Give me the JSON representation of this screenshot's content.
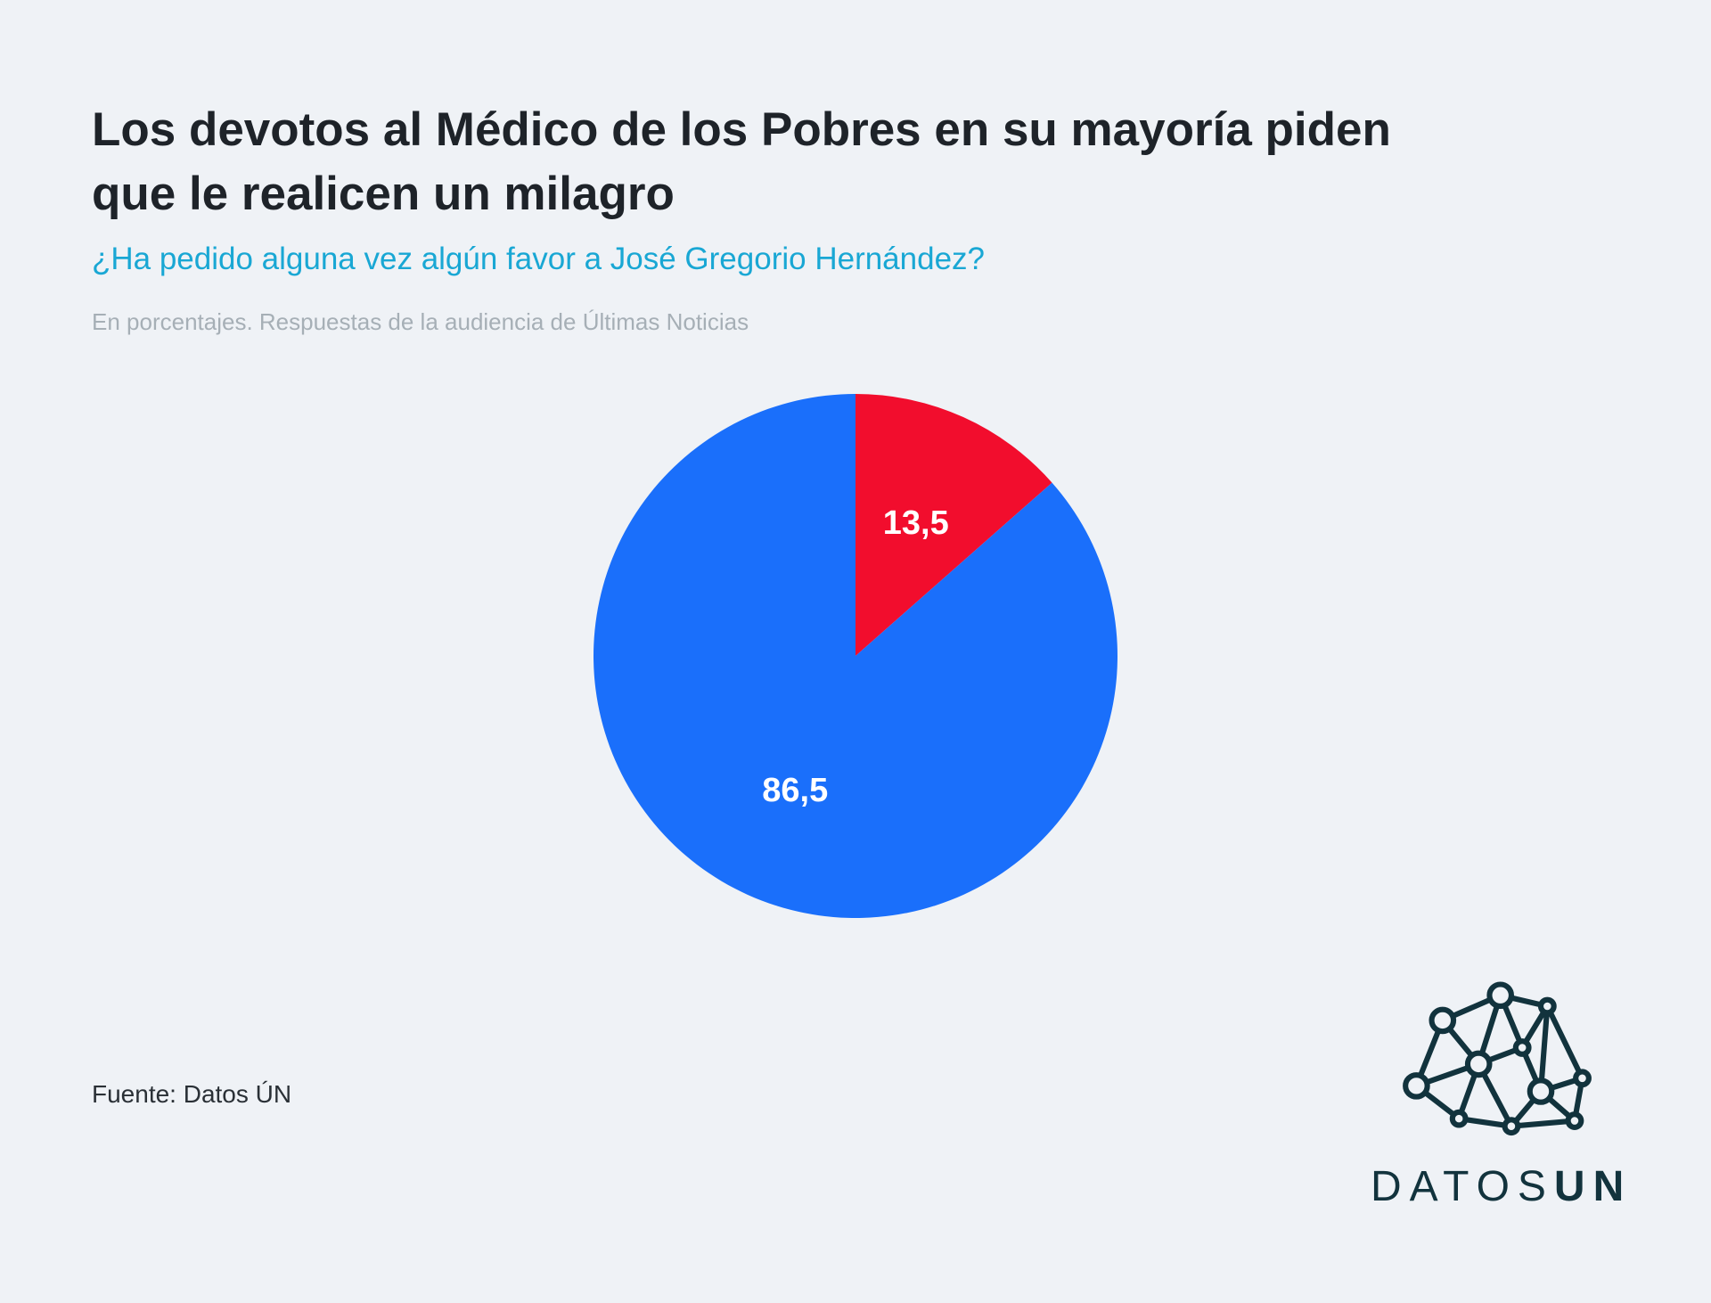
{
  "chart_data": {
    "type": "pie",
    "title": [
      "Los devotos al Médico de los Pobres en su mayoría piden",
      "que le realicen un milagro"
    ],
    "subtitle": "¿Ha pedido alguna vez algún favor a José Gregorio Hernández?",
    "note": "En porcentajes. Respuestas de la audiencia de Últimas Noticias",
    "source": "Fuente: Datos ÚN",
    "values": [
      13.5,
      86.5
    ],
    "value_labels": [
      "13,5",
      "86,5"
    ],
    "colors": [
      "#f20d2d",
      "#1a6ffb"
    ]
  },
  "logo": {
    "text": "DATOS",
    "text_bold": "UN"
  }
}
